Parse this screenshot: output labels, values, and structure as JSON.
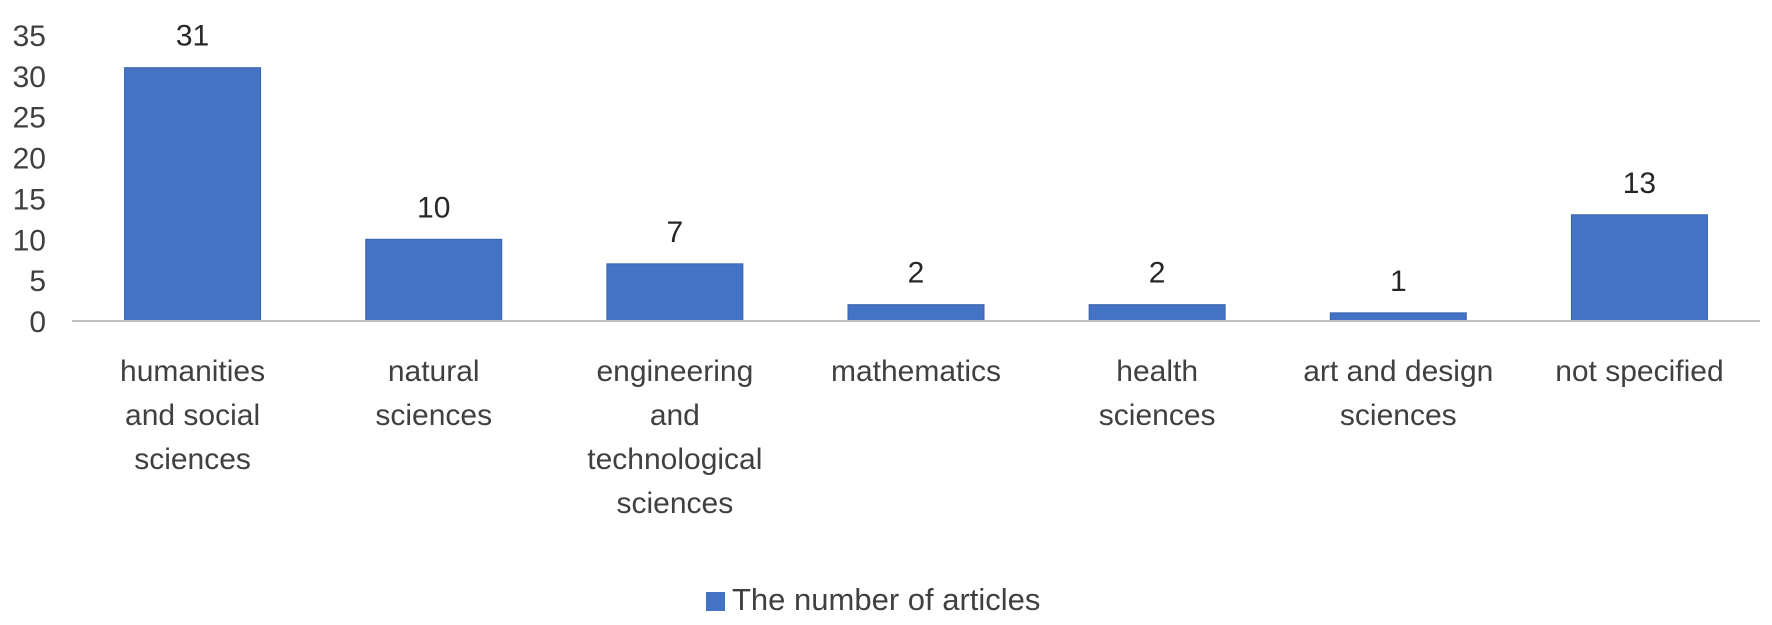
{
  "chart_data": {
    "type": "bar",
    "title": "",
    "xlabel": "",
    "ylabel": "",
    "categories": [
      [
        "humanities",
        "and social",
        "sciences"
      ],
      [
        "natural",
        "sciences"
      ],
      [
        "engineering",
        "and",
        "technological",
        "sciences"
      ],
      [
        "mathematics"
      ],
      [
        "health",
        "sciences"
      ],
      [
        "art and design",
        "sciences"
      ],
      [
        "not specified"
      ]
    ],
    "series": [
      {
        "name": "The number of articles",
        "values": [
          31,
          10,
          7,
          2,
          2,
          1,
          13
        ]
      }
    ],
    "ylim": [
      0,
      35
    ],
    "yticks": [
      0,
      5,
      10,
      15,
      20,
      25,
      30,
      35
    ],
    "grid": false,
    "legend": "bottom-center",
    "colors": {
      "bar": "#4472C4",
      "bar_edge": "#3A64B0",
      "axis": "#BFBFBF"
    }
  }
}
